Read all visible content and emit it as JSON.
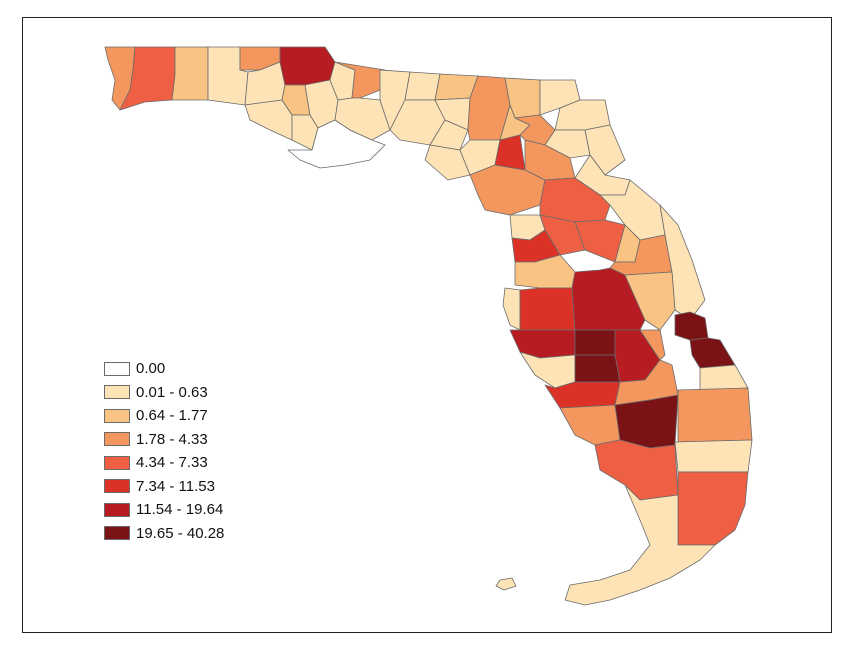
{
  "legend": {
    "classes": [
      {
        "label": "0.00",
        "color": "#ffffff"
      },
      {
        "label": "0.01 - 0.63",
        "color": "#fde3b6"
      },
      {
        "label": "0.64 - 1.77",
        "color": "#f9c384"
      },
      {
        "label": "1.78 - 4.33",
        "color": "#f4975e"
      },
      {
        "label": "4.34 - 7.33",
        "color": "#ef5f44"
      },
      {
        "label": "7.34 - 11.53",
        "color": "#dc3127"
      },
      {
        "label": "11.54 - 19.64",
        "color": "#b71c22"
      },
      {
        "label": "19.65 - 40.28",
        "color": "#7a1216"
      }
    ]
  }
}
